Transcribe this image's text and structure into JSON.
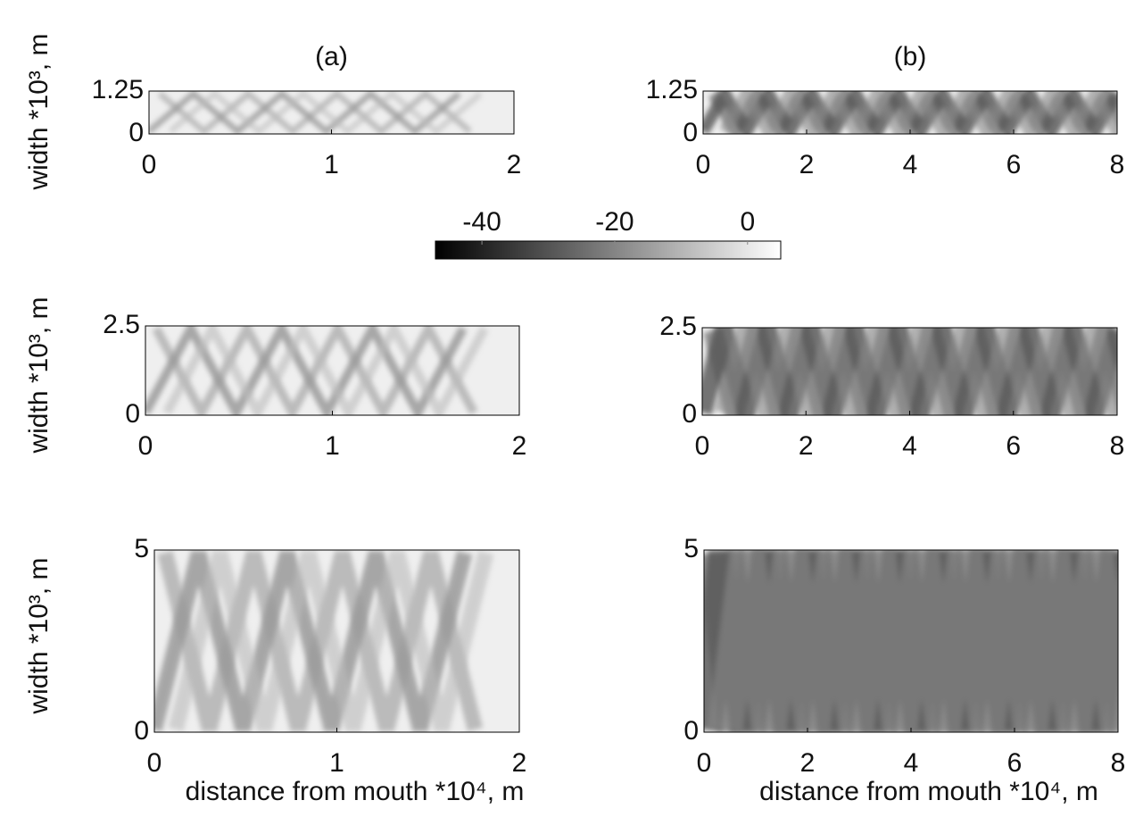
{
  "chart_data": [
    {
      "type": "heatmap",
      "title": "(a)",
      "ylabel": "width *10³, m",
      "xlim": [
        0,
        2
      ],
      "xticks": [
        0,
        1,
        2
      ],
      "ylim": [
        0,
        1.25
      ],
      "yticks": [
        0,
        1.25
      ]
    },
    {
      "type": "heatmap",
      "title": "(b)",
      "xlim": [
        0,
        8
      ],
      "xticks": [
        0,
        2,
        4,
        6,
        8
      ],
      "ylim": [
        0,
        1.25
      ],
      "yticks": [
        0,
        1.25
      ]
    },
    {
      "type": "heatmap",
      "ylabel": "width *10³, m",
      "xlim": [
        0,
        2
      ],
      "xticks": [
        0,
        1,
        2
      ],
      "ylim": [
        0,
        2.5
      ],
      "yticks": [
        0,
        2.5
      ]
    },
    {
      "type": "heatmap",
      "xlim": [
        0,
        8
      ],
      "xticks": [
        0,
        2,
        4,
        6,
        8
      ],
      "ylim": [
        0,
        2.5
      ],
      "yticks": [
        0,
        2.5
      ]
    },
    {
      "type": "heatmap",
      "ylabel": "width *10³, m",
      "xlabel": "distance from mouth *10⁴, m",
      "xlim": [
        0,
        2
      ],
      "xticks": [
        0,
        1,
        2
      ],
      "ylim": [
        0,
        5
      ],
      "yticks": [
        0,
        5
      ]
    },
    {
      "type": "heatmap",
      "xlabel": "distance from mouth *10⁴, m",
      "xlim": [
        0,
        8
      ],
      "xticks": [
        0,
        2,
        4,
        6,
        8
      ],
      "ylim": [
        0,
        5
      ],
      "yticks": [
        0,
        5
      ]
    }
  ],
  "colorbar": {
    "clim": [
      -47,
      5
    ],
    "ticks": [
      -40,
      -20,
      0
    ]
  }
}
